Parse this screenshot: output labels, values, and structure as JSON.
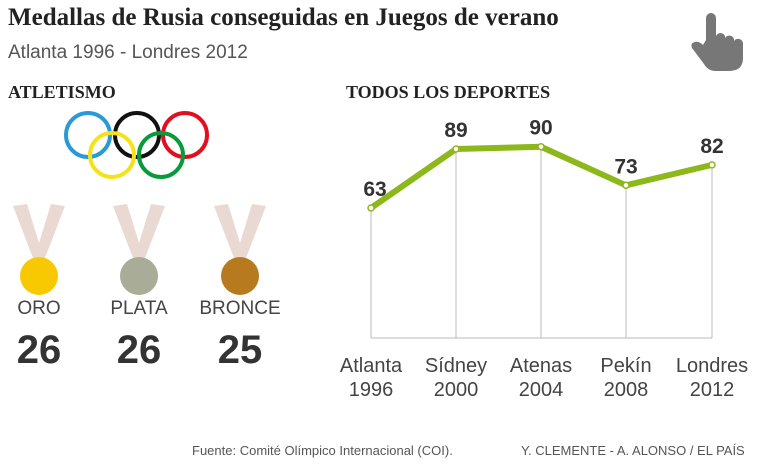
{
  "header": {
    "title": "Medallas de Rusia conseguidas en Juegos de verano",
    "subtitle": "Atlanta 1996 - Londres 2012"
  },
  "athletics": {
    "heading": "ATLETISMO",
    "medals": [
      {
        "label": "ORO",
        "value": "26",
        "color": "#f8c900"
      },
      {
        "label": "PLATA",
        "value": "26",
        "color": "#a9ad97"
      },
      {
        "label": "BRONCE",
        "value": "25",
        "color": "#b87a1e"
      }
    ]
  },
  "chart_data": {
    "type": "line",
    "title": "TODOS LOS DEPORTES",
    "categories": [
      "Atlanta\n1996",
      "Sídney\n2000",
      "Atenas\n2004",
      "Pekín\n2008",
      "Londres\n2012"
    ],
    "category_lines": [
      [
        "Atlanta",
        "1996"
      ],
      [
        "Sídney",
        "2000"
      ],
      [
        "Atenas",
        "2004"
      ],
      [
        "Pekín",
        "2008"
      ],
      [
        "Londres",
        "2012"
      ]
    ],
    "values": [
      63,
      89,
      90,
      73,
      82
    ],
    "ylim": [
      6,
      100
    ],
    "color": "#8db81c",
    "xlabel": "",
    "ylabel": ""
  },
  "footer": {
    "source": "Fuente: Comité Olímpico Internacional (COI).",
    "credit": "Y. CLEMENTE - A. ALONSO / EL PAÍS"
  }
}
